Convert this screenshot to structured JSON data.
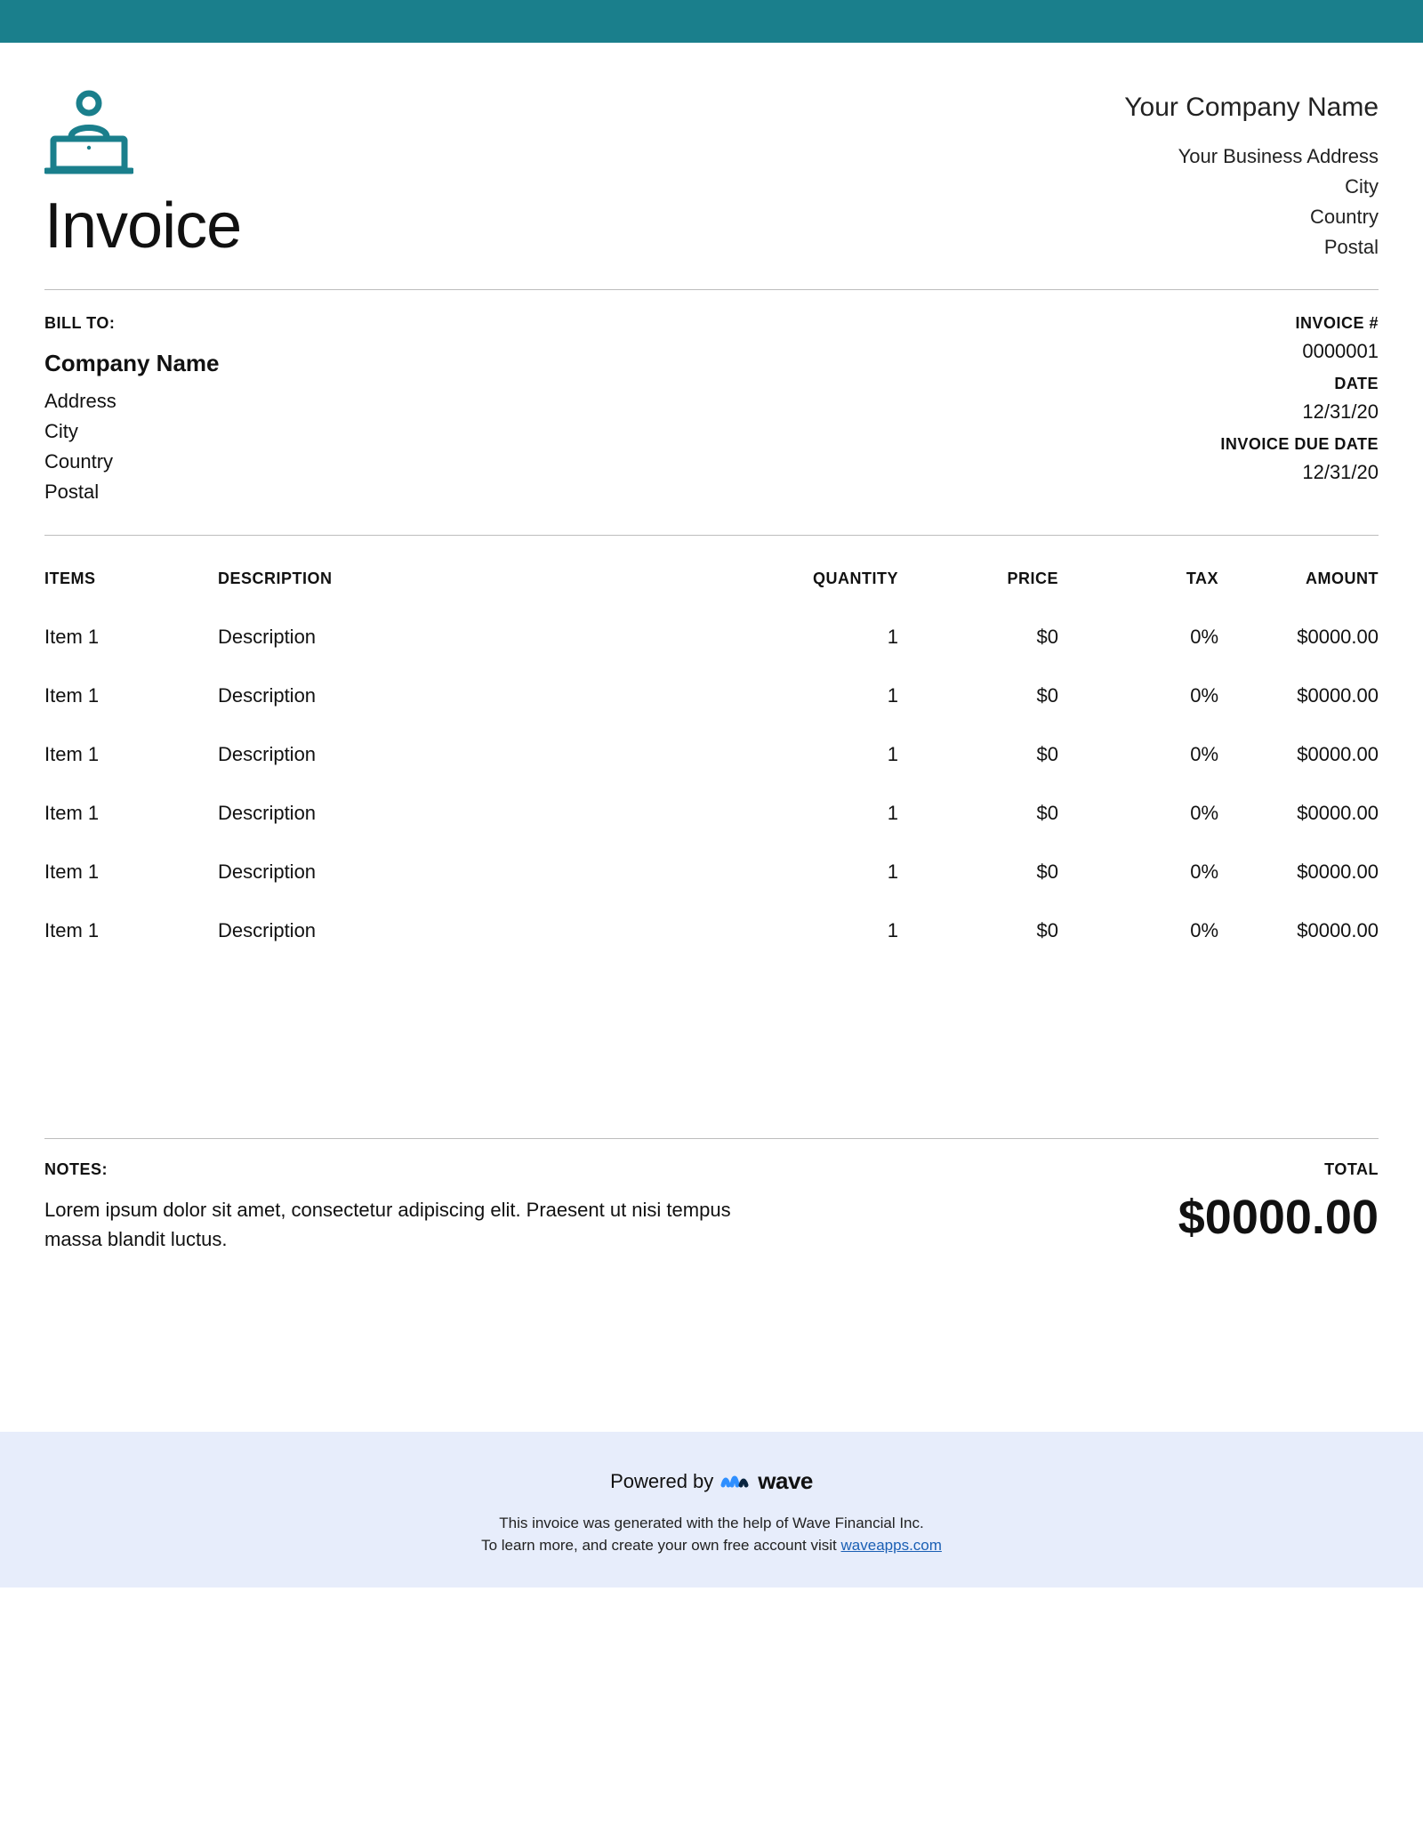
{
  "colors": {
    "accent": "#1a7f8c",
    "footer_bg": "#e7edfb",
    "rule": "#bdbdbd",
    "link": "#1a5fb4",
    "wave_blue": "#2f8fff",
    "wave_navy": "#0a2540"
  },
  "header": {
    "doc_title": "Invoice"
  },
  "company": {
    "name": "Your Company Name",
    "address": "Your Business Address",
    "city": "City",
    "country": "Country",
    "postal": "Postal"
  },
  "bill_to": {
    "label": "BILL TO:",
    "name": "Company Name",
    "address": "Address",
    "city": "City",
    "country": "Country",
    "postal": "Postal"
  },
  "invoice_meta": {
    "number_label": "INVOICE #",
    "number": "0000001",
    "date_label": "DATE",
    "date": "12/31/20",
    "due_label": "INVOICE DUE DATE",
    "due": "12/31/20"
  },
  "table": {
    "columns": {
      "items": "ITEMS",
      "description": "DESCRIPTION",
      "quantity": "QUANTITY",
      "price": "PRICE",
      "tax": "TAX",
      "amount": "AMOUNT"
    },
    "rows": [
      {
        "item": "Item 1",
        "description": "Description",
        "quantity": "1",
        "price": "$0",
        "tax": "0%",
        "amount": "$0000.00"
      },
      {
        "item": "Item 1",
        "description": "Description",
        "quantity": "1",
        "price": "$0",
        "tax": "0%",
        "amount": "$0000.00"
      },
      {
        "item": "Item 1",
        "description": "Description",
        "quantity": "1",
        "price": "$0",
        "tax": "0%",
        "amount": "$0000.00"
      },
      {
        "item": "Item 1",
        "description": "Description",
        "quantity": "1",
        "price": "$0",
        "tax": "0%",
        "amount": "$0000.00"
      },
      {
        "item": "Item 1",
        "description": "Description",
        "quantity": "1",
        "price": "$0",
        "tax": "0%",
        "amount": "$0000.00"
      },
      {
        "item": "Item 1",
        "description": "Description",
        "quantity": "1",
        "price": "$0",
        "tax": "0%",
        "amount": "$0000.00"
      }
    ]
  },
  "notes": {
    "label": "NOTES:",
    "text": "Lorem ipsum dolor sit amet, consectetur adipiscing elit. Praesent ut nisi tempus massa blandit luctus."
  },
  "total": {
    "label": "TOTAL",
    "amount": "$0000.00"
  },
  "footer": {
    "powered_by": "Powered by",
    "brand": "wave",
    "line1": "This invoice was generated with the help of Wave Financial Inc.",
    "line2_pre": "To learn more, and create your own free account visit ",
    "link_text": "waveapps.com"
  }
}
